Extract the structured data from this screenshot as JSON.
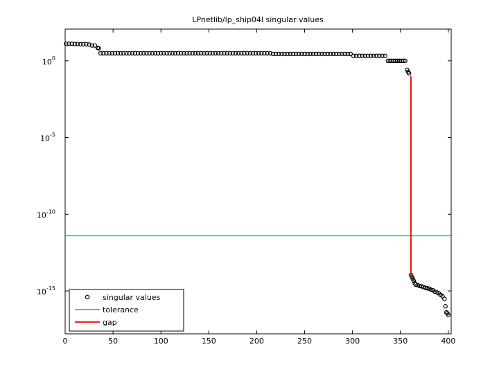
{
  "chart_data": {
    "type": "scatter",
    "title": "LPnetlib/lp_ship04l singular values",
    "log_y": true,
    "legend": "lower left",
    "xlim": [
      0,
      403
    ],
    "xticks": [
      0,
      50,
      100,
      150,
      200,
      250,
      300,
      350,
      400
    ],
    "ylim": [
      1.6e-18,
      117
    ],
    "yticks": [
      {
        "value": 1e-15,
        "label": "10",
        "exponent": "-15"
      },
      {
        "value": 1e-10,
        "label": "10",
        "exponent": "-10"
      },
      {
        "value": 1e-05,
        "label": "10",
        "exponent": "-5"
      },
      {
        "value": 1,
        "label": "10",
        "exponent": "0"
      }
    ],
    "series": [
      {
        "name": "singular values",
        "color": "#000000",
        "mark": "circle",
        "x": [
          1,
          4,
          7,
          10,
          13,
          16,
          19,
          22,
          25,
          28,
          31,
          34,
          35,
          37,
          40,
          43,
          46,
          49,
          52,
          55,
          58,
          61,
          64,
          67,
          70,
          73,
          76,
          79,
          82,
          85,
          88,
          91,
          94,
          97,
          100,
          103,
          106,
          109,
          112,
          115,
          118,
          121,
          124,
          127,
          130,
          133,
          136,
          139,
          142,
          145,
          148,
          151,
          154,
          157,
          160,
          163,
          166,
          169,
          172,
          175,
          178,
          181,
          184,
          187,
          190,
          193,
          196,
          199,
          202,
          205,
          208,
          211,
          214,
          217,
          220,
          223,
          226,
          229,
          232,
          235,
          238,
          241,
          244,
          247,
          250,
          253,
          256,
          259,
          262,
          265,
          268,
          271,
          274,
          277,
          280,
          283,
          286,
          289,
          292,
          295,
          298,
          301,
          304,
          307,
          310,
          313,
          316,
          319,
          322,
          325,
          328,
          331,
          334,
          337,
          339,
          341,
          343,
          345,
          347,
          349,
          351,
          353,
          355,
          357,
          358,
          359,
          361,
          362,
          363,
          364,
          365,
          366,
          368,
          370,
          372,
          374,
          376,
          378,
          380,
          382,
          384,
          386,
          388,
          390,
          392,
          394,
          396,
          397,
          398,
          399,
          400
        ],
        "values": [
          13,
          13,
          13,
          12.5,
          12.5,
          12,
          12,
          12,
          11.5,
          10,
          10,
          7,
          6.5,
          3.1,
          3.1,
          3.1,
          3.1,
          3.1,
          3.1,
          3.1,
          3.1,
          3.1,
          3.1,
          3.1,
          3.1,
          3.1,
          3.1,
          3.1,
          3.1,
          3.1,
          3.1,
          3.1,
          3.1,
          3.1,
          3.1,
          3.1,
          3.1,
          3.1,
          3.1,
          3.1,
          3.1,
          3.1,
          3.1,
          3.1,
          3.1,
          3.1,
          3.1,
          3.1,
          3.1,
          3.1,
          3.1,
          3.1,
          3.1,
          3.1,
          3.1,
          3.1,
          3.1,
          3.1,
          3.1,
          3.1,
          3.1,
          3.1,
          3.1,
          3.1,
          3.1,
          3.1,
          3.1,
          3.1,
          3.1,
          3.1,
          3.1,
          3.1,
          3.1,
          2.8,
          2.8,
          2.8,
          2.8,
          2.8,
          2.8,
          2.8,
          2.8,
          2.8,
          2.8,
          2.8,
          2.8,
          2.8,
          2.8,
          2.8,
          2.8,
          2.8,
          2.8,
          2.8,
          2.8,
          2.8,
          2.8,
          2.8,
          2.8,
          2.8,
          2.8,
          2.8,
          2.8,
          2.1,
          2.1,
          2.1,
          2.1,
          2.1,
          2.1,
          2.1,
          2.1,
          2.1,
          2.1,
          2.1,
          2.1,
          1,
          1,
          1,
          1,
          1,
          1,
          1,
          1,
          1,
          1,
          0.26,
          0.19,
          0.155,
          1.1e-14,
          8e-15,
          6e-15,
          4.5e-15,
          3.2e-15,
          2.6e-15,
          2.4e-15,
          2.1e-15,
          2e-15,
          1.8e-15,
          1.6e-15,
          1.5e-15,
          1.4e-15,
          1.2e-15,
          1.1e-15,
          9e-16,
          8e-16,
          7e-16,
          5.5e-16,
          4.5e-16,
          3e-16,
          1e-16,
          4e-17,
          3.5e-17,
          2.8e-17
        ]
      },
      {
        "name": "tolerance",
        "color": "#00ee00",
        "mark": "hline",
        "values": [
          4e-12
        ]
      },
      {
        "name": "gap",
        "color": "#ee0000",
        "mark": "line",
        "x": [
          361,
          361
        ],
        "values": [
          0.1,
          1.1e-14
        ]
      }
    ]
  }
}
